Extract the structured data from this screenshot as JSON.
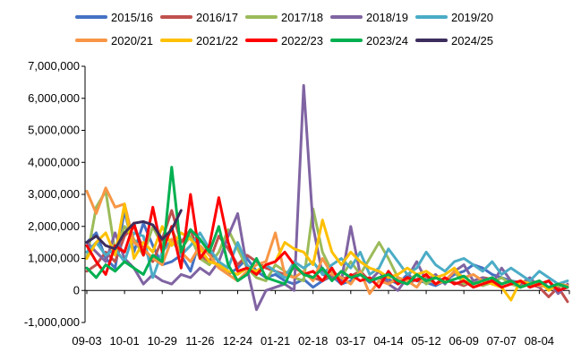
{
  "chart_data": {
    "type": "line",
    "title": "",
    "xlabel": "",
    "ylabel": "",
    "ylim": [
      -1000000,
      7000000
    ],
    "y_ticks": [
      -1000000,
      0,
      1000000,
      2000000,
      3000000,
      4000000,
      5000000,
      6000000,
      7000000
    ],
    "y_tick_labels": [
      "-1,000,000",
      "0",
      "1,000,000",
      "2,000,000",
      "3,000,000",
      "4,000,000",
      "5,000,000",
      "6,000,000",
      "7,000,000"
    ],
    "negative_tick_color": "#ff0000",
    "x_tick_labels": [
      "09-03",
      "10-01",
      "10-29",
      "11-26",
      "12-24",
      "01-21",
      "02-18",
      "03-17",
      "04-14",
      "05-12",
      "06-09",
      "07-07",
      "08-04"
    ],
    "x_ticks_every_weeks": 4,
    "x_week_count": 52,
    "grid": false,
    "legend_position": "top",
    "series": [
      {
        "name": "2015/16",
        "color": "#4472c4",
        "values": [
          1500000,
          1800000,
          1000000,
          700000,
          2500000,
          1200000,
          2100000,
          1400000,
          800000,
          900000,
          1100000,
          600000,
          1600000,
          1200000,
          900000,
          500000,
          700000,
          1000000,
          600000,
          400000,
          500000,
          300000,
          200000,
          350000,
          100000,
          300000,
          450000,
          200000,
          300000,
          500000,
          250000,
          400000,
          350000,
          200000,
          500000,
          300000,
          250000,
          150000,
          300000,
          500000,
          600000,
          800000,
          700000,
          500000,
          400000,
          300000,
          250000,
          200000,
          300000,
          100000,
          200000,
          150000
        ]
      },
      {
        "name": "2016/17",
        "color": "#c0504d",
        "values": [
          600000,
          800000,
          1200000,
          900000,
          1700000,
          2000000,
          1300000,
          900000,
          1600000,
          2500000,
          1500000,
          1900000,
          1100000,
          900000,
          1700000,
          1300000,
          800000,
          1100000,
          900000,
          700000,
          600000,
          500000,
          700000,
          550000,
          400000,
          300000,
          500000,
          350000,
          450000,
          600000,
          300000,
          400000,
          250000,
          300000,
          200000,
          350000,
          450000,
          200000,
          300000,
          250000,
          150000,
          300000,
          400000,
          350000,
          200000,
          300000,
          150000,
          200000,
          100000,
          -200000,
          100000,
          -350000
        ]
      },
      {
        "name": "2017/18",
        "color": "#9bbb59",
        "values": [
          1000000,
          2600000,
          3100000,
          1200000,
          2000000,
          1600000,
          1100000,
          2000000,
          1400000,
          1900000,
          1300000,
          1700000,
          1000000,
          800000,
          1200000,
          1900000,
          1300000,
          700000,
          400000,
          300000,
          800000,
          600000,
          400000,
          300000,
          2550000,
          1200000,
          600000,
          400000,
          900000,
          500000,
          1000000,
          1500000,
          1000000,
          400000,
          300000,
          500000,
          200000,
          400000,
          300000,
          600000,
          200000,
          300000,
          150000,
          250000,
          400000,
          200000,
          100000,
          300000,
          200000,
          100000,
          150000,
          100000
        ]
      },
      {
        "name": "2018/19",
        "color": "#8064a2",
        "values": [
          1500000,
          1200000,
          900000,
          1800000,
          1000000,
          700000,
          200000,
          500000,
          300000,
          200000,
          500000,
          400000,
          700000,
          500000,
          900000,
          1700000,
          2400000,
          700000,
          -600000,
          0,
          100000,
          200000,
          0,
          6400000,
          2000000,
          500000,
          400000,
          300000,
          2000000,
          500000,
          300000,
          600000,
          200000,
          0,
          400000,
          900000,
          300000,
          500000,
          200000,
          600000,
          800000,
          300000,
          400000,
          200000,
          700000,
          300000,
          200000,
          400000,
          100000,
          300000,
          -100000,
          200000
        ]
      },
      {
        "name": "2019/20",
        "color": "#4bacc6",
        "values": [
          1200000,
          1500000,
          1100000,
          1300000,
          900000,
          1800000,
          1700000,
          400000,
          1200000,
          1600000,
          1100000,
          1400000,
          1800000,
          1300000,
          900000,
          700000,
          1500000,
          800000,
          500000,
          800000,
          600000,
          400000,
          900000,
          700000,
          900000,
          500000,
          800000,
          1000000,
          700000,
          1200000,
          500000,
          700000,
          1300000,
          900000,
          500000,
          700000,
          1200000,
          800000,
          600000,
          900000,
          1000000,
          800000,
          600000,
          900000,
          500000,
          700000,
          500000,
          300000,
          600000,
          400000,
          200000,
          300000
        ]
      },
      {
        "name": "2020/21",
        "color": "#f79646",
        "values": [
          3100000,
          2400000,
          3200000,
          2600000,
          2700000,
          1500000,
          1300000,
          1000000,
          800000,
          1600000,
          1200000,
          900000,
          1400000,
          1100000,
          700000,
          500000,
          300000,
          600000,
          800000,
          900000,
          1800000,
          500000,
          400000,
          600000,
          300000,
          1000000,
          500000,
          400000,
          200000,
          600000,
          -100000,
          300000,
          200000,
          400000,
          300000,
          100000,
          500000,
          200000,
          300000,
          600000,
          400000,
          500000,
          300000,
          400000,
          200000,
          300000,
          100000,
          200000,
          150000,
          100000,
          200000,
          150000
        ]
      },
      {
        "name": "2021/22",
        "color": "#ffc000",
        "values": [
          1000000,
          1500000,
          1800000,
          1100000,
          2700000,
          1000000,
          1500000,
          1200000,
          2000000,
          1400000,
          1800000,
          1600000,
          1300000,
          900000,
          800000,
          600000,
          500000,
          700000,
          600000,
          800000,
          900000,
          1500000,
          1300000,
          1200000,
          800000,
          2200000,
          1200000,
          800000,
          1200000,
          900000,
          700000,
          600000,
          400000,
          500000,
          700000,
          500000,
          600000,
          400000,
          500000,
          700000,
          300000,
          200000,
          300000,
          200000,
          100000,
          -300000,
          300000,
          200000,
          300000,
          0,
          200000,
          100000
        ]
      },
      {
        "name": "2022/23",
        "color": "#ff0000",
        "values": [
          1400000,
          900000,
          500000,
          1400000,
          1200000,
          2100000,
          1100000,
          2600000,
          1200000,
          2000000,
          700000,
          3000000,
          1000000,
          1400000,
          2900000,
          1500000,
          600000,
          700000,
          500000,
          800000,
          900000,
          1200000,
          800000,
          500000,
          600000,
          300000,
          700000,
          200000,
          500000,
          300000,
          400000,
          100000,
          600000,
          200000,
          400000,
          300000,
          500000,
          200000,
          400000,
          200000,
          300000,
          100000,
          200000,
          300000,
          100000,
          200000,
          300000,
          100000,
          200000,
          300000,
          0,
          100000
        ]
      },
      {
        "name": "2023/24",
        "color": "#00b050",
        "values": [
          700000,
          400000,
          800000,
          600000,
          900000,
          700000,
          500000,
          1100000,
          900000,
          3850000,
          1200000,
          1900000,
          1600000,
          1200000,
          2000000,
          800000,
          300000,
          500000,
          1000000,
          400000,
          300000,
          200000,
          800000,
          500000,
          400000,
          700000,
          300000,
          600000,
          400000,
          500000,
          300000,
          400000,
          500000,
          300000,
          200000,
          500000,
          300000,
          400000,
          250000,
          350000,
          450000,
          200000,
          300000,
          400000,
          200000,
          300000,
          100000,
          200000,
          300000,
          100000,
          200000,
          100000
        ]
      },
      {
        "name": "2024/25",
        "color": "#3d2d5c",
        "values": [
          1500000,
          1700000,
          1400000,
          1300000,
          1800000,
          2100000,
          2150000,
          2050000,
          1600000,
          1900000,
          2500000
        ]
      }
    ]
  }
}
